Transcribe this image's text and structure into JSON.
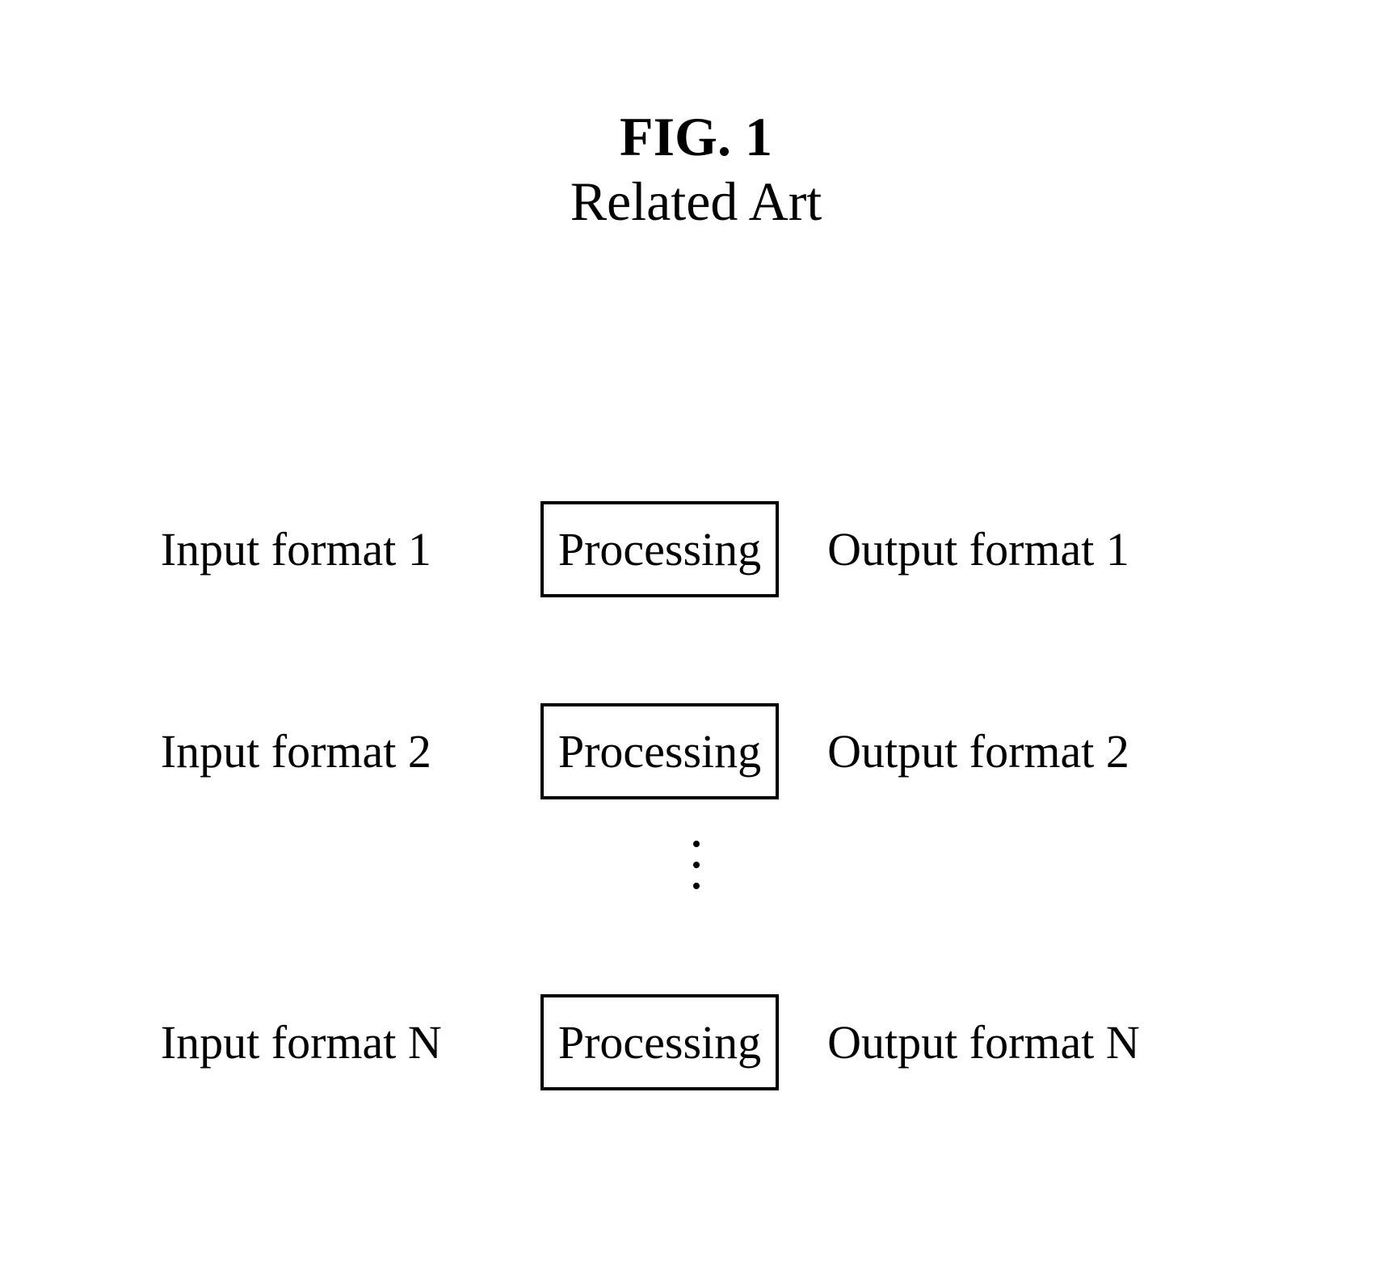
{
  "figure": {
    "label": "FIG. 1",
    "subtitle": "Related Art"
  },
  "diagram": {
    "type": "flowchart",
    "background_color": "#ffffff",
    "text_color": "#000000",
    "border_color": "#000000",
    "border_width": 4,
    "font_family": "Times New Roman",
    "title_fontsize": 68,
    "label_fontsize": 58,
    "rows": [
      {
        "input": "Input format 1",
        "process": "Processing",
        "output": "Output format 1"
      },
      {
        "input": "Input format 2",
        "process": "Processing",
        "output": "Output format 2"
      },
      {
        "input": "Input format N",
        "process": "Processing",
        "output": "Output format N"
      }
    ],
    "ellipsis_between_rows": [
      1,
      2
    ]
  }
}
